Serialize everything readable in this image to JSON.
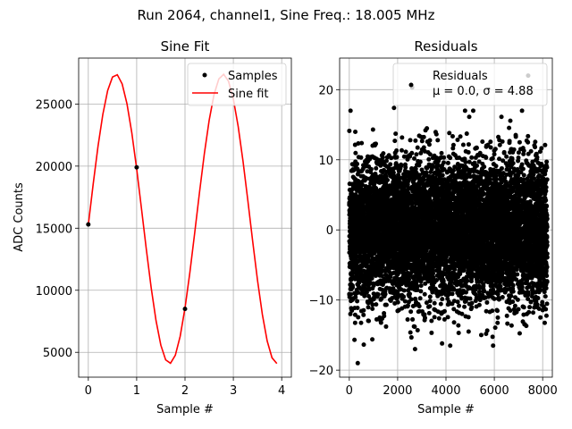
{
  "figure": {
    "suptitle": "Run 2064, channel1, Sine Freq.: 18.005 MHz"
  },
  "chart_data": [
    {
      "type": "line",
      "title": "Sine Fit",
      "xlabel": "Sample #",
      "ylabel": "ADC Counts",
      "xlim": [
        -0.2,
        4.2
      ],
      "ylim": [
        3000,
        28700
      ],
      "xticks": [
        0,
        1,
        2,
        3,
        4
      ],
      "xtick_labels": [
        "0",
        "1",
        "2",
        "3",
        "4"
      ],
      "yticks": [
        5000,
        10000,
        15000,
        20000,
        25000
      ],
      "ytick_labels": [
        "5000",
        "10000",
        "15000",
        "20000",
        "25000"
      ],
      "grid": true,
      "legend_position": "top-right",
      "series": [
        {
          "name": "Samples",
          "kind": "scatter",
          "color": "#000000",
          "x": [
            0,
            1,
            2
          ],
          "y": [
            15300,
            19900,
            8500
          ]
        },
        {
          "name": "Sine fit",
          "kind": "line",
          "color": "#ff0000",
          "amplitude": 11650,
          "offset": 15750,
          "period": 2.22,
          "phase_deg": -2.4,
          "x_range": [
            0,
            3.9
          ],
          "n_points": 40
        }
      ]
    },
    {
      "type": "scatter",
      "title": "Residuals",
      "xlabel": "Sample #",
      "ylabel": "",
      "xlim": [
        -400,
        8400
      ],
      "ylim": [
        -21,
        24.5
      ],
      "xticks": [
        0,
        2000,
        4000,
        6000,
        8000
      ],
      "xtick_labels": [
        "0",
        "2000",
        "4000",
        "6000",
        "8000"
      ],
      "yticks": [
        -20,
        -10,
        0,
        10,
        20
      ],
      "ytick_labels": [
        "−20",
        "−10",
        "0",
        "10",
        "20"
      ],
      "grid": true,
      "legend_position": "top-right",
      "legend_label_line1": "Residuals",
      "legend_label_line2": "μ = 0.0, σ = 4.88",
      "series": [
        {
          "name": "Residuals",
          "color": "#000000",
          "n_points": 8192,
          "mean": 0.0,
          "std": 4.88,
          "highlighted": [
            {
              "x": 2600,
              "y": 20.3
            },
            {
              "x": 7400,
              "y": 22.0
            },
            {
              "x": 350,
              "y": -19.0
            },
            {
              "x": 1850,
              "y": 17.4
            },
            {
              "x": 5950,
              "y": -16.5
            }
          ]
        }
      ]
    }
  ]
}
